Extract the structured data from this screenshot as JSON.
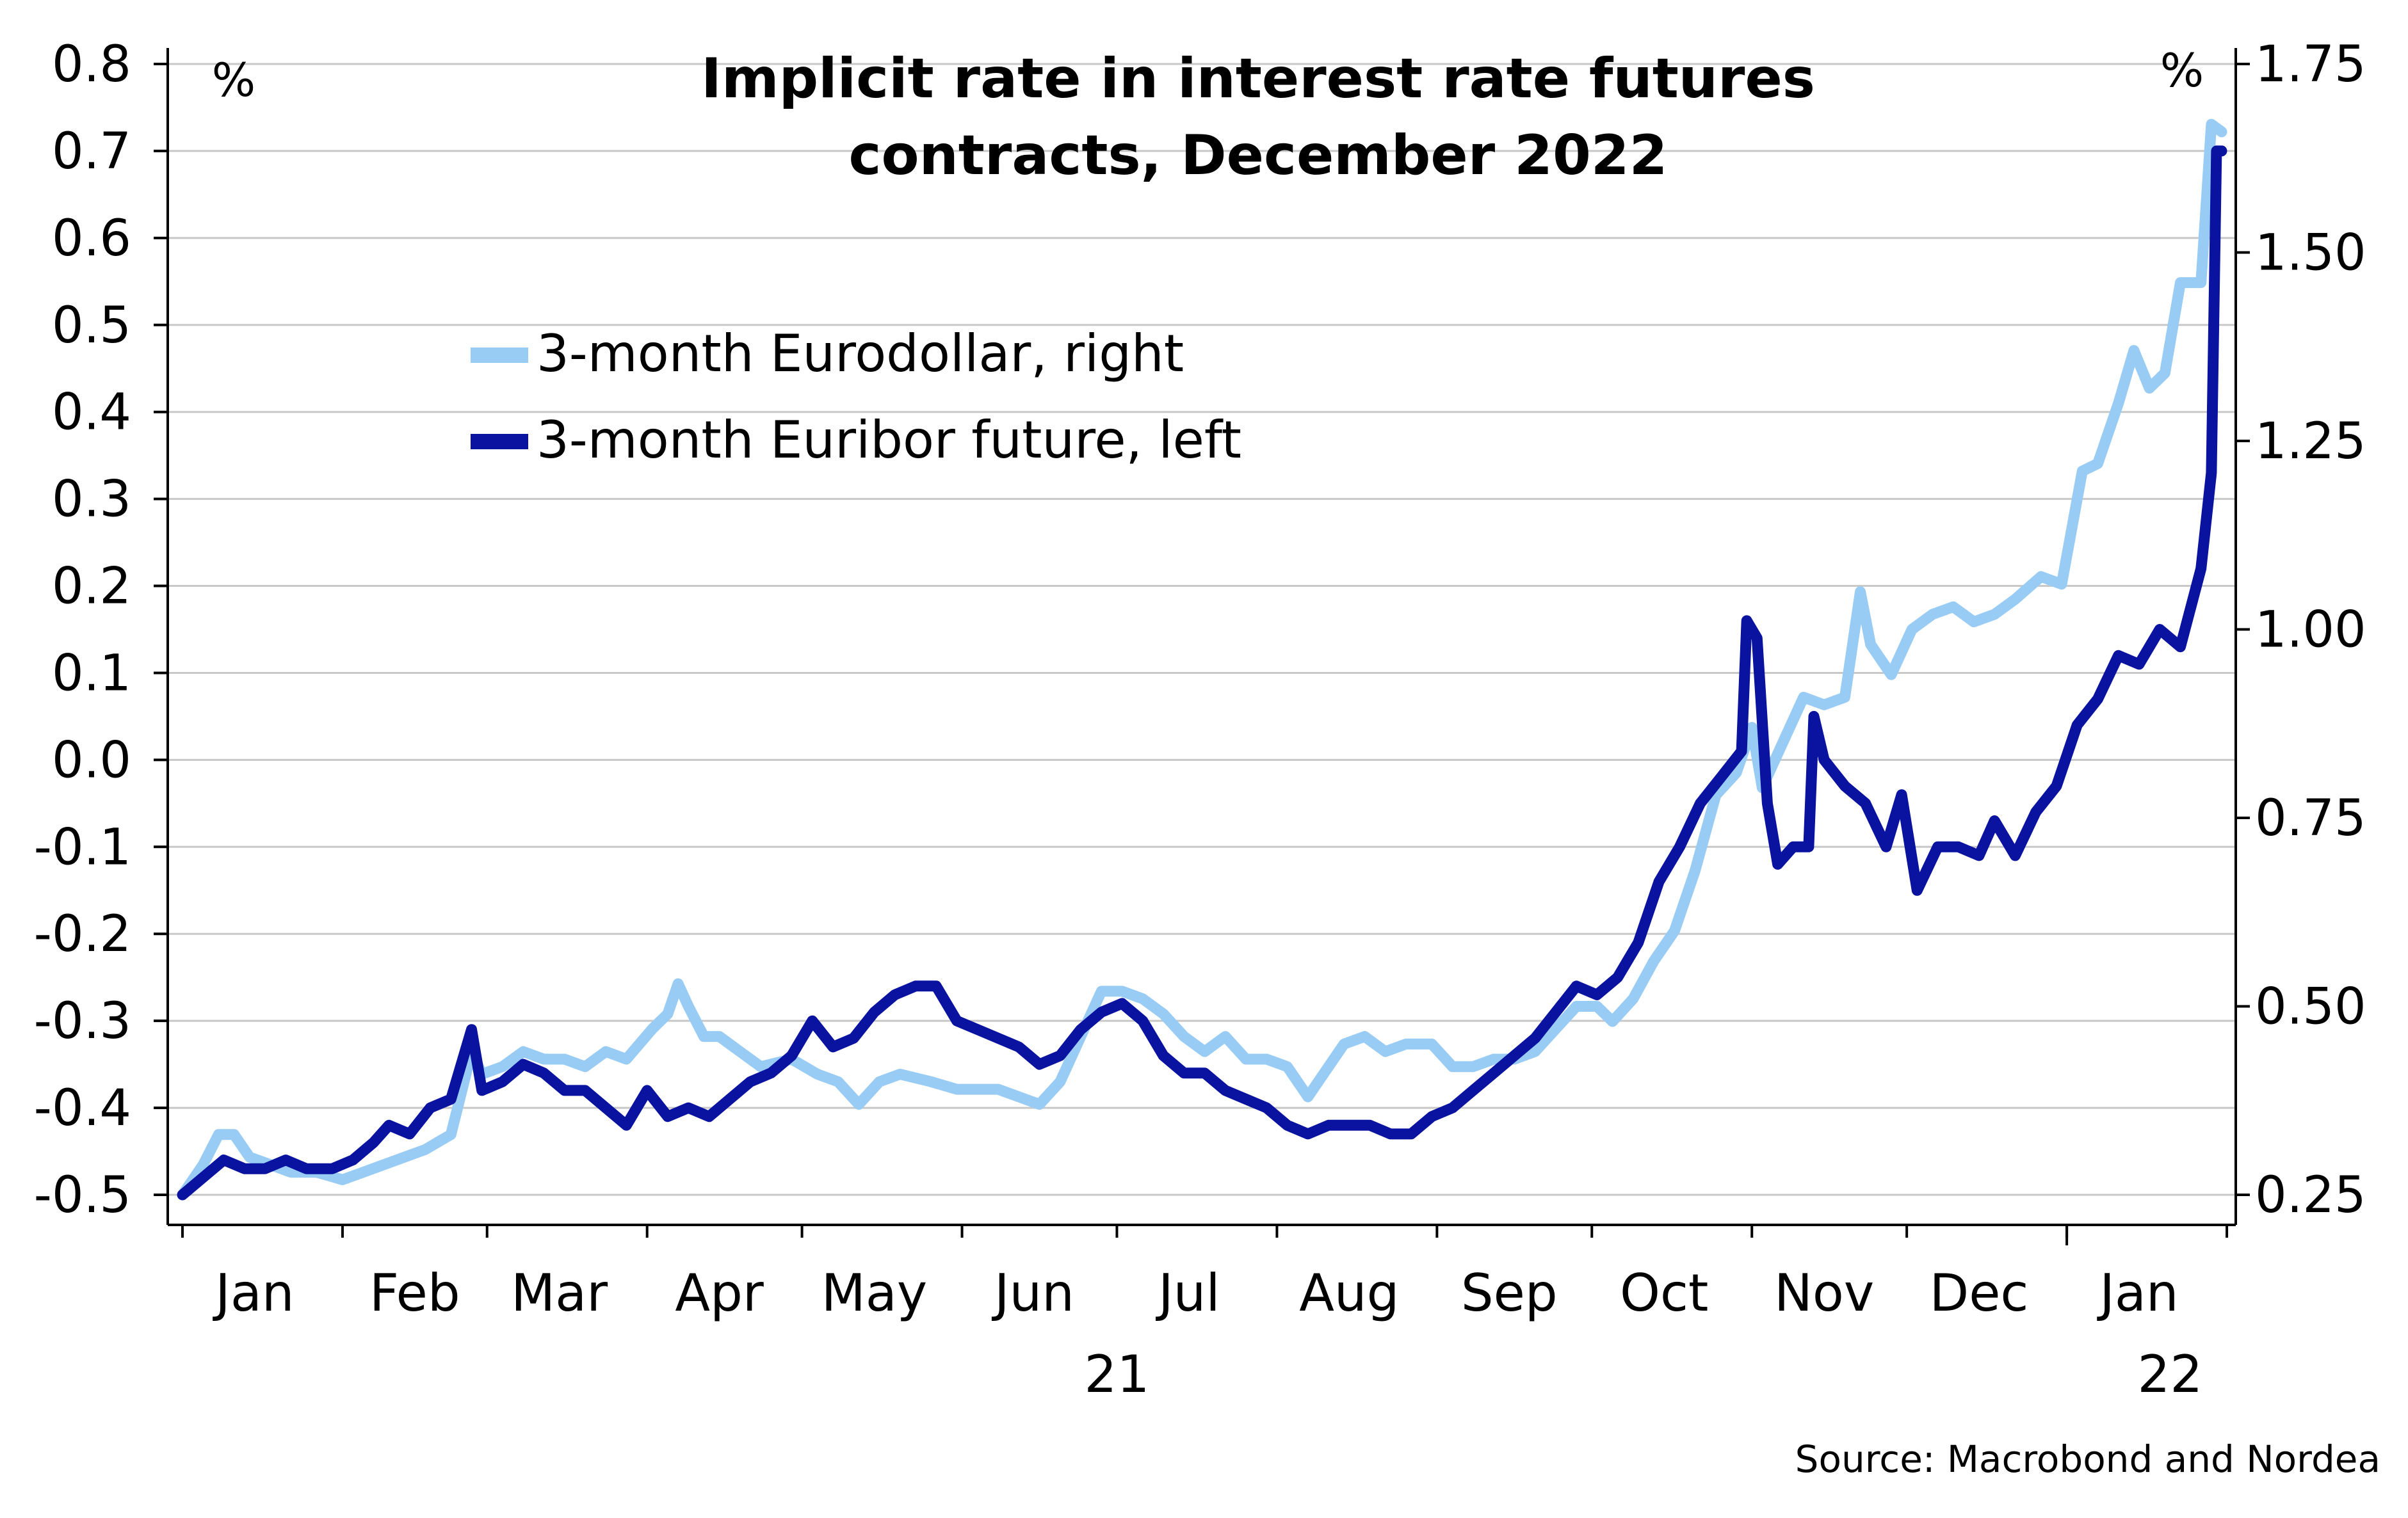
{
  "chart_data": {
    "type": "line",
    "title_lines": [
      "Implicit rate in interest rate futures",
      "contracts, December 2022"
    ],
    "left_axis": {
      "unit_label": "%",
      "range": [
        -0.5,
        0.8
      ],
      "ticks": [
        {
          "value": 0.8,
          "label": "0.8"
        },
        {
          "value": 0.7,
          "label": "0.7"
        },
        {
          "value": 0.6,
          "label": "0.6"
        },
        {
          "value": 0.5,
          "label": "0.5"
        },
        {
          "value": 0.4,
          "label": "0.4"
        },
        {
          "value": 0.3,
          "label": "0.3"
        },
        {
          "value": 0.2,
          "label": "0.2"
        },
        {
          "value": 0.1,
          "label": "0.1"
        },
        {
          "value": 0.0,
          "label": "0.0"
        },
        {
          "value": -0.1,
          "label": "-0.1"
        },
        {
          "value": -0.2,
          "label": "-0.2"
        },
        {
          "value": -0.3,
          "label": "-0.3"
        },
        {
          "value": -0.4,
          "label": "-0.4"
        },
        {
          "value": -0.5,
          "label": "-0.5"
        }
      ]
    },
    "right_axis": {
      "unit_label": "%",
      "range": [
        0.25,
        1.75
      ],
      "ticks": [
        {
          "value": 1.75,
          "label": "1.75"
        },
        {
          "value": 1.5,
          "label": "1.50"
        },
        {
          "value": 1.25,
          "label": "1.25"
        },
        {
          "value": 1.0,
          "label": "1.00"
        },
        {
          "value": 0.75,
          "label": "0.75"
        },
        {
          "value": 0.5,
          "label": "0.50"
        },
        {
          "value": 0.25,
          "label": "0.25"
        }
      ]
    },
    "x_axis": {
      "range": [
        "2021-01-01",
        "2022-01-31"
      ],
      "month_labels": [
        {
          "label": "Jan",
          "date": "2021-01-15"
        },
        {
          "label": "Feb",
          "date": "2021-02-15"
        },
        {
          "label": "Mar",
          "date": "2021-03-15"
        },
        {
          "label": "Apr",
          "date": "2021-04-15"
        },
        {
          "label": "May",
          "date": "2021-05-15"
        },
        {
          "label": "Jun",
          "date": "2021-06-15"
        },
        {
          "label": "Jul",
          "date": "2021-07-15"
        },
        {
          "label": "Aug",
          "date": "2021-08-15"
        },
        {
          "label": "Sep",
          "date": "2021-09-15"
        },
        {
          "label": "Oct",
          "date": "2021-10-15"
        },
        {
          "label": "Nov",
          "date": "2021-11-15"
        },
        {
          "label": "Dec",
          "date": "2021-12-15"
        },
        {
          "label": "Jan",
          "date": "2022-01-15"
        }
      ],
      "month_ticks": [
        "2021-01-01",
        "2021-02-01",
        "2021-03-01",
        "2021-04-01",
        "2021-05-01",
        "2021-06-01",
        "2021-07-01",
        "2021-08-01",
        "2021-09-01",
        "2021-10-01",
        "2021-11-01",
        "2021-12-01",
        "2022-01-01",
        "2022-02-01"
      ],
      "year_labels": [
        {
          "label": "21",
          "date": "2021-07-01"
        },
        {
          "label": "22",
          "date": "2022-01-21"
        }
      ],
      "year_divider": "2022-01-01"
    },
    "grid": true,
    "legend_position": "upper-left",
    "series": [
      {
        "name": "3-month Eurodollar, right",
        "axis": "right",
        "color": "#99CCF5",
        "points": [
          [
            "2021-01-01",
            0.25
          ],
          [
            "2021-01-05",
            0.29
          ],
          [
            "2021-01-08",
            0.33
          ],
          [
            "2021-01-11",
            0.33
          ],
          [
            "2021-01-14",
            0.3
          ],
          [
            "2021-01-18",
            0.29
          ],
          [
            "2021-01-22",
            0.28
          ],
          [
            "2021-01-27",
            0.28
          ],
          [
            "2021-02-01",
            0.27
          ],
          [
            "2021-02-05",
            0.28
          ],
          [
            "2021-02-09",
            0.29
          ],
          [
            "2021-02-13",
            0.3
          ],
          [
            "2021-02-17",
            0.31
          ],
          [
            "2021-02-22",
            0.33
          ],
          [
            "2021-02-26",
            0.44
          ],
          [
            "2021-02-28",
            0.41
          ],
          [
            "2021-03-04",
            0.42
          ],
          [
            "2021-03-08",
            0.44
          ],
          [
            "2021-03-12",
            0.43
          ],
          [
            "2021-03-16",
            0.43
          ],
          [
            "2021-03-20",
            0.42
          ],
          [
            "2021-03-24",
            0.44
          ],
          [
            "2021-03-28",
            0.43
          ],
          [
            "2021-04-02",
            0.47
          ],
          [
            "2021-04-05",
            0.49
          ],
          [
            "2021-04-07",
            0.53
          ],
          [
            "2021-04-09",
            0.5
          ],
          [
            "2021-04-12",
            0.46
          ],
          [
            "2021-04-15",
            0.46
          ],
          [
            "2021-04-19",
            0.44
          ],
          [
            "2021-04-23",
            0.42
          ],
          [
            "2021-04-29",
            0.43
          ],
          [
            "2021-05-04",
            0.41
          ],
          [
            "2021-05-08",
            0.4
          ],
          [
            "2021-05-12",
            0.37
          ],
          [
            "2021-05-16",
            0.4
          ],
          [
            "2021-05-20",
            0.41
          ],
          [
            "2021-05-26",
            0.4
          ],
          [
            "2021-05-31",
            0.39
          ],
          [
            "2021-06-04",
            0.39
          ],
          [
            "2021-06-08",
            0.39
          ],
          [
            "2021-06-12",
            0.38
          ],
          [
            "2021-06-16",
            0.37
          ],
          [
            "2021-06-20",
            0.4
          ],
          [
            "2021-06-24",
            0.46
          ],
          [
            "2021-06-28",
            0.52
          ],
          [
            "2021-07-02",
            0.52
          ],
          [
            "2021-07-06",
            0.51
          ],
          [
            "2021-07-10",
            0.49
          ],
          [
            "2021-07-14",
            0.46
          ],
          [
            "2021-07-18",
            0.44
          ],
          [
            "2021-07-22",
            0.46
          ],
          [
            "2021-07-26",
            0.43
          ],
          [
            "2021-07-30",
            0.43
          ],
          [
            "2021-08-03",
            0.42
          ],
          [
            "2021-08-07",
            0.38
          ],
          [
            "2021-08-10",
            0.41
          ],
          [
            "2021-08-14",
            0.45
          ],
          [
            "2021-08-18",
            0.46
          ],
          [
            "2021-08-22",
            0.44
          ],
          [
            "2021-08-26",
            0.45
          ],
          [
            "2021-08-31",
            0.45
          ],
          [
            "2021-09-04",
            0.42
          ],
          [
            "2021-09-08",
            0.42
          ],
          [
            "2021-09-12",
            0.43
          ],
          [
            "2021-09-16",
            0.43
          ],
          [
            "2021-09-20",
            0.44
          ],
          [
            "2021-09-24",
            0.47
          ],
          [
            "2021-09-28",
            0.5
          ],
          [
            "2021-10-02",
            0.5
          ],
          [
            "2021-10-05",
            0.48
          ],
          [
            "2021-10-09",
            0.51
          ],
          [
            "2021-10-13",
            0.56
          ],
          [
            "2021-10-17",
            0.6
          ],
          [
            "2021-10-21",
            0.68
          ],
          [
            "2021-10-25",
            0.78
          ],
          [
            "2021-10-29",
            0.81
          ],
          [
            "2021-11-01",
            0.87
          ],
          [
            "2021-11-03",
            0.79
          ],
          [
            "2021-11-07",
            0.85
          ],
          [
            "2021-11-11",
            0.91
          ],
          [
            "2021-11-15",
            0.9
          ],
          [
            "2021-11-19",
            0.91
          ],
          [
            "2021-11-22",
            1.05
          ],
          [
            "2021-11-24",
            0.98
          ],
          [
            "2021-11-28",
            0.94
          ],
          [
            "2021-12-02",
            1.0
          ],
          [
            "2021-12-06",
            1.02
          ],
          [
            "2021-12-10",
            1.03
          ],
          [
            "2021-12-14",
            1.01
          ],
          [
            "2021-12-18",
            1.02
          ],
          [
            "2021-12-22",
            1.04
          ],
          [
            "2021-12-27",
            1.07
          ],
          [
            "2021-12-31",
            1.06
          ],
          [
            "2022-01-04",
            1.21
          ],
          [
            "2022-01-07",
            1.22
          ],
          [
            "2022-01-11",
            1.3
          ],
          [
            "2022-01-14",
            1.37
          ],
          [
            "2022-01-17",
            1.32
          ],
          [
            "2022-01-20",
            1.34
          ],
          [
            "2022-01-23",
            1.46
          ],
          [
            "2022-01-27",
            1.46
          ],
          [
            "2022-01-29",
            1.67
          ],
          [
            "2022-01-31",
            1.66
          ]
        ]
      },
      {
        "name": "3-month Euribor future, left",
        "axis": "left",
        "color": "#0A12A0",
        "points": [
          [
            "2021-01-01",
            -0.5
          ],
          [
            "2021-01-05",
            -0.48
          ],
          [
            "2021-01-09",
            -0.46
          ],
          [
            "2021-01-13",
            -0.47
          ],
          [
            "2021-01-17",
            -0.47
          ],
          [
            "2021-01-21",
            -0.46
          ],
          [
            "2021-01-25",
            -0.47
          ],
          [
            "2021-01-30",
            -0.47
          ],
          [
            "2021-02-03",
            -0.46
          ],
          [
            "2021-02-07",
            -0.44
          ],
          [
            "2021-02-10",
            -0.42
          ],
          [
            "2021-02-14",
            -0.43
          ],
          [
            "2021-02-18",
            -0.4
          ],
          [
            "2021-02-22",
            -0.39
          ],
          [
            "2021-02-26",
            -0.31
          ],
          [
            "2021-02-28",
            -0.38
          ],
          [
            "2021-03-04",
            -0.37
          ],
          [
            "2021-03-08",
            -0.35
          ],
          [
            "2021-03-12",
            -0.36
          ],
          [
            "2021-03-16",
            -0.38
          ],
          [
            "2021-03-20",
            -0.38
          ],
          [
            "2021-03-24",
            -0.4
          ],
          [
            "2021-03-28",
            -0.42
          ],
          [
            "2021-04-01",
            -0.38
          ],
          [
            "2021-04-05",
            -0.41
          ],
          [
            "2021-04-09",
            -0.4
          ],
          [
            "2021-04-13",
            -0.41
          ],
          [
            "2021-04-17",
            -0.39
          ],
          [
            "2021-04-21",
            -0.37
          ],
          [
            "2021-04-25",
            -0.36
          ],
          [
            "2021-04-29",
            -0.34
          ],
          [
            "2021-05-03",
            -0.3
          ],
          [
            "2021-05-07",
            -0.33
          ],
          [
            "2021-05-11",
            -0.32
          ],
          [
            "2021-05-15",
            -0.29
          ],
          [
            "2021-05-19",
            -0.27
          ],
          [
            "2021-05-23",
            -0.26
          ],
          [
            "2021-05-27",
            -0.26
          ],
          [
            "2021-05-31",
            -0.3
          ],
          [
            "2021-06-04",
            -0.31
          ],
          [
            "2021-06-08",
            -0.32
          ],
          [
            "2021-06-12",
            -0.33
          ],
          [
            "2021-06-16",
            -0.35
          ],
          [
            "2021-06-20",
            -0.34
          ],
          [
            "2021-06-24",
            -0.31
          ],
          [
            "2021-06-28",
            -0.29
          ],
          [
            "2021-07-02",
            -0.28
          ],
          [
            "2021-07-06",
            -0.3
          ],
          [
            "2021-07-10",
            -0.34
          ],
          [
            "2021-07-14",
            -0.36
          ],
          [
            "2021-07-18",
            -0.36
          ],
          [
            "2021-07-22",
            -0.38
          ],
          [
            "2021-07-26",
            -0.39
          ],
          [
            "2021-07-30",
            -0.4
          ],
          [
            "2021-08-03",
            -0.42
          ],
          [
            "2021-08-07",
            -0.43
          ],
          [
            "2021-08-11",
            -0.42
          ],
          [
            "2021-08-15",
            -0.42
          ],
          [
            "2021-08-19",
            -0.42
          ],
          [
            "2021-08-23",
            -0.43
          ],
          [
            "2021-08-27",
            -0.43
          ],
          [
            "2021-08-31",
            -0.41
          ],
          [
            "2021-09-04",
            -0.4
          ],
          [
            "2021-09-08",
            -0.38
          ],
          [
            "2021-09-12",
            -0.36
          ],
          [
            "2021-09-16",
            -0.34
          ],
          [
            "2021-09-20",
            -0.32
          ],
          [
            "2021-09-24",
            -0.29
          ],
          [
            "2021-09-28",
            -0.26
          ],
          [
            "2021-10-02",
            -0.27
          ],
          [
            "2021-10-06",
            -0.25
          ],
          [
            "2021-10-10",
            -0.21
          ],
          [
            "2021-10-14",
            -0.14
          ],
          [
            "2021-10-18",
            -0.1
          ],
          [
            "2021-10-22",
            -0.05
          ],
          [
            "2021-10-26",
            -0.02
          ],
          [
            "2021-10-30",
            0.01
          ],
          [
            "2021-10-31",
            0.16
          ],
          [
            "2021-11-02",
            0.14
          ],
          [
            "2021-11-04",
            -0.05
          ],
          [
            "2021-11-06",
            -0.12
          ],
          [
            "2021-11-09",
            -0.1
          ],
          [
            "2021-11-12",
            -0.1
          ],
          [
            "2021-11-13",
            0.05
          ],
          [
            "2021-11-15",
            0.0
          ],
          [
            "2021-11-19",
            -0.03
          ],
          [
            "2021-11-23",
            -0.05
          ],
          [
            "2021-11-27",
            -0.1
          ],
          [
            "2021-11-30",
            -0.04
          ],
          [
            "2021-12-03",
            -0.15
          ],
          [
            "2021-12-07",
            -0.1
          ],
          [
            "2021-12-11",
            -0.1
          ],
          [
            "2021-12-15",
            -0.11
          ],
          [
            "2021-12-18",
            -0.07
          ],
          [
            "2021-12-22",
            -0.11
          ],
          [
            "2021-12-26",
            -0.06
          ],
          [
            "2021-12-30",
            -0.03
          ],
          [
            "2022-01-03",
            0.04
          ],
          [
            "2022-01-07",
            0.07
          ],
          [
            "2022-01-11",
            0.12
          ],
          [
            "2022-01-15",
            0.11
          ],
          [
            "2022-01-19",
            0.15
          ],
          [
            "2022-01-23",
            0.13
          ],
          [
            "2022-01-27",
            0.22
          ],
          [
            "2022-01-29",
            0.33
          ],
          [
            "2022-01-30",
            0.7
          ],
          [
            "2022-01-31",
            0.7
          ]
        ]
      }
    ]
  },
  "source": "Source: Macrobond and Nordea"
}
